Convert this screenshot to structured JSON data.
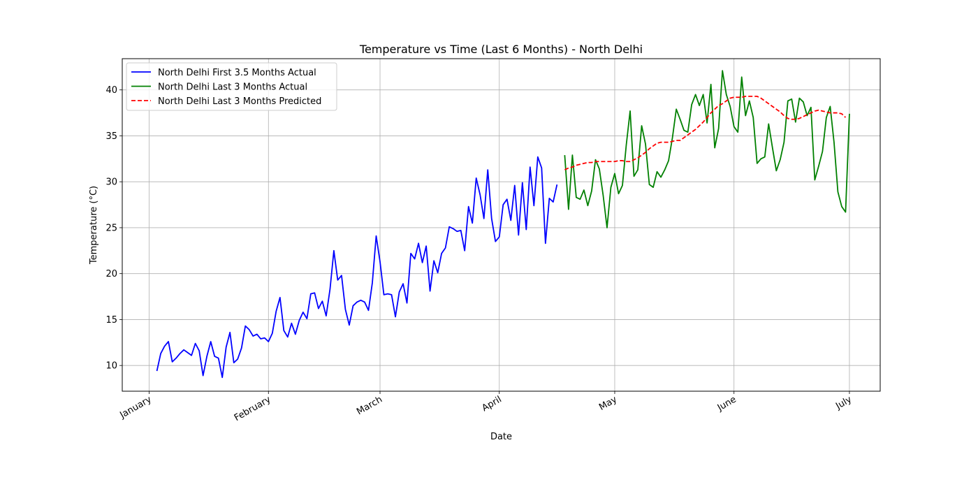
{
  "chart_data": {
    "type": "line",
    "title": "Temperature vs Time (Last 6 Months) - North Delhi",
    "xlabel": "Date",
    "ylabel": "Temperature (°C)",
    "xlim": [
      "2023-12-25",
      "2024-07-09"
    ],
    "ylim": [
      7.2,
      43.4
    ],
    "grid": true,
    "legend_position": "upper-left",
    "x_ticks": [
      {
        "date": "2024-01-01",
        "label": "January"
      },
      {
        "date": "2024-02-01",
        "label": "February"
      },
      {
        "date": "2024-03-01",
        "label": "March"
      },
      {
        "date": "2024-04-01",
        "label": "April"
      },
      {
        "date": "2024-05-01",
        "label": "May"
      },
      {
        "date": "2024-06-01",
        "label": "June"
      },
      {
        "date": "2024-07-01",
        "label": "July"
      }
    ],
    "y_ticks": [
      10,
      15,
      20,
      25,
      30,
      35,
      40
    ],
    "series": [
      {
        "name": "North Delhi First 3.5 Months Actual",
        "color": "#0000ff",
        "style": "solid",
        "start_date": "2024-01-03",
        "values": [
          9.4,
          11.3,
          12.1,
          12.6,
          10.4,
          10.8,
          11.3,
          11.7,
          11.4,
          11.1,
          12.4,
          11.6,
          8.9,
          11.0,
          12.6,
          11.0,
          10.8,
          8.7,
          12.0,
          13.6,
          10.3,
          10.7,
          11.9,
          14.3,
          13.9,
          13.2,
          13.4,
          12.9,
          13.0,
          12.6,
          13.5,
          15.9,
          17.4,
          13.8,
          13.1,
          14.6,
          13.4,
          14.9,
          15.8,
          15.1,
          17.8,
          17.9,
          16.2,
          17.0,
          15.4,
          18.3,
          22.5,
          19.3,
          19.8,
          16.1,
          14.4,
          16.5,
          16.9,
          17.1,
          16.9,
          16.0,
          19.0,
          24.1,
          21.3,
          17.7,
          17.8,
          17.7,
          15.3,
          18.0,
          18.9,
          16.8,
          22.2,
          21.6,
          23.3,
          21.2,
          23.0,
          18.1,
          21.4,
          20.1,
          22.2,
          22.8,
          25.1,
          24.9,
          24.6,
          24.7,
          22.5,
          27.3,
          25.5,
          30.4,
          28.6,
          26.0,
          31.3,
          26.0,
          23.5,
          24.0,
          27.5,
          28.1,
          25.8,
          29.6,
          24.2,
          29.9,
          24.8,
          31.6,
          27.4,
          32.7,
          31.5,
          23.3,
          28.2,
          27.8,
          29.7
        ]
      },
      {
        "name": "North Delhi Last 3 Months Actual",
        "color": "#008000",
        "style": "solid",
        "start_date": "2024-04-18",
        "values": [
          32.9,
          27.0,
          32.9,
          28.3,
          28.1,
          29.1,
          27.4,
          29.0,
          32.4,
          31.4,
          28.5,
          25.0,
          29.4,
          30.9,
          28.7,
          29.6,
          34.0,
          37.7,
          30.6,
          31.3,
          36.1,
          34.1,
          29.7,
          29.4,
          31.1,
          30.5,
          31.3,
          32.3,
          34.8,
          37.9,
          36.8,
          35.6,
          35.4,
          38.4,
          39.5,
          38.3,
          39.5,
          36.4,
          40.6,
          33.7,
          35.8,
          42.1,
          39.5,
          38.2,
          36.0,
          35.4,
          41.4,
          37.2,
          38.8,
          37.0,
          32.0,
          32.5,
          32.7,
          36.3,
          33.7,
          31.2,
          32.4,
          34.3,
          38.8,
          39.0,
          36.5,
          39.1,
          38.7,
          37.2,
          38.1,
          30.2,
          31.7,
          33.3,
          37.0,
          38.2,
          34.3,
          28.9,
          27.3,
          26.7,
          37.4
        ]
      },
      {
        "name": "North Delhi Last 3 Months Predicted",
        "color": "#ff0000",
        "style": "dashed",
        "start_date": "2024-04-18",
        "values": [
          31.3,
          31.5,
          31.6,
          31.8,
          31.9,
          32.0,
          32.1,
          32.1,
          32.2,
          32.2,
          32.2,
          32.2,
          32.2,
          32.2,
          32.3,
          32.3,
          32.2,
          32.2,
          32.4,
          32.6,
          32.9,
          33.2,
          33.6,
          33.9,
          34.2,
          34.3,
          34.3,
          34.3,
          34.4,
          34.5,
          34.5,
          34.8,
          35.1,
          35.4,
          35.7,
          36.1,
          36.5,
          37.0,
          37.5,
          37.9,
          38.3,
          38.5,
          38.8,
          39.1,
          39.2,
          39.2,
          39.2,
          39.3,
          39.3,
          39.3,
          39.3,
          39.1,
          38.8,
          38.5,
          38.2,
          37.9,
          37.6,
          37.2,
          36.9,
          36.8,
          36.8,
          36.9,
          37.1,
          37.3,
          37.5,
          37.7,
          37.8,
          37.7,
          37.6,
          37.5,
          37.5,
          37.5,
          37.4,
          37.0
        ]
      }
    ]
  }
}
